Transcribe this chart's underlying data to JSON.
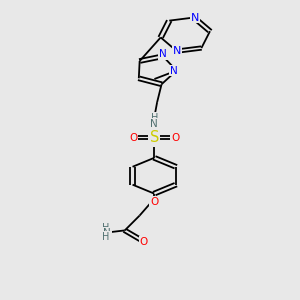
{
  "bg_color": "#e8e8e8",
  "atom_colors": {
    "N": "#0000FF",
    "O": "#FF0000",
    "S": "#CCCC00",
    "C": "#000000",
    "H": "#507070"
  },
  "bond_color": "#000000",
  "bond_lw": 1.3,
  "font_size": 7.5,
  "xlim": [
    0,
    10
  ],
  "ylim": [
    0,
    14
  ]
}
